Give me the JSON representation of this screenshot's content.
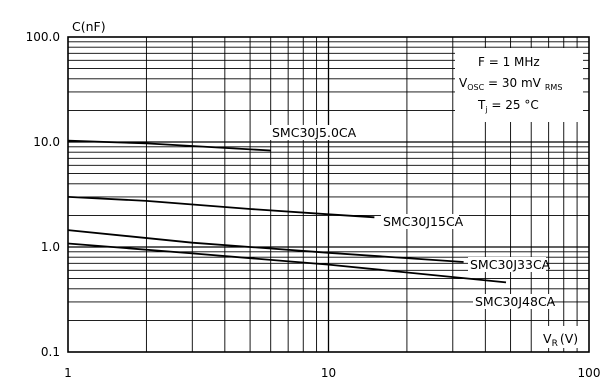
{
  "chart_data": {
    "type": "line",
    "title": "",
    "xlabel": "V_R (V)",
    "ylabel": "C(nF)",
    "xscale": "log",
    "yscale": "log",
    "xlim": [
      1,
      100
    ],
    "ylim": [
      0.1,
      100
    ],
    "grid": true,
    "x_ticks": [
      "1",
      "10",
      "100"
    ],
    "y_ticks": [
      "0.1",
      "1.0",
      "10.0",
      "100.0"
    ],
    "conditions": {
      "freq": "F = 1 MHz",
      "vosc": "V_OSC = 30 mV RMS",
      "tj": "T_j = 25 °C"
    },
    "series": [
      {
        "name": "SMC30J5.0CA",
        "x": [
          1,
          2,
          6
        ],
        "y": [
          10.3,
          9.7,
          8.3
        ]
      },
      {
        "name": "SMC30J15CA",
        "x": [
          1,
          2,
          5,
          10,
          15
        ],
        "y": [
          3.0,
          2.75,
          2.3,
          2.05,
          1.92
        ]
      },
      {
        "name": "SMC30J33CA",
        "x": [
          1,
          3,
          10,
          33
        ],
        "y": [
          1.45,
          1.1,
          0.88,
          0.72
        ]
      },
      {
        "name": "SMC30J48CA",
        "x": [
          1,
          3,
          10,
          48
        ],
        "y": [
          1.08,
          0.87,
          0.68,
          0.46
        ]
      }
    ]
  },
  "text": {
    "ylabel": "C(nF)",
    "xlabel_v": "V",
    "xlabel_sub": "R",
    "xlabel_unit": "(V)",
    "cond_freq": "F = 1 MHz",
    "cond_vosc_v": "V",
    "cond_vosc_sub": "OSC",
    "cond_vosc_val": " = 30 mV",
    "cond_vosc_rms": "RMS",
    "cond_tj_t": "T",
    "cond_tj_sub": "j",
    "cond_tj_val": " = 25 °C"
  },
  "colors": {
    "line": "#000000",
    "grid": "#000000",
    "background": "#ffffff"
  }
}
